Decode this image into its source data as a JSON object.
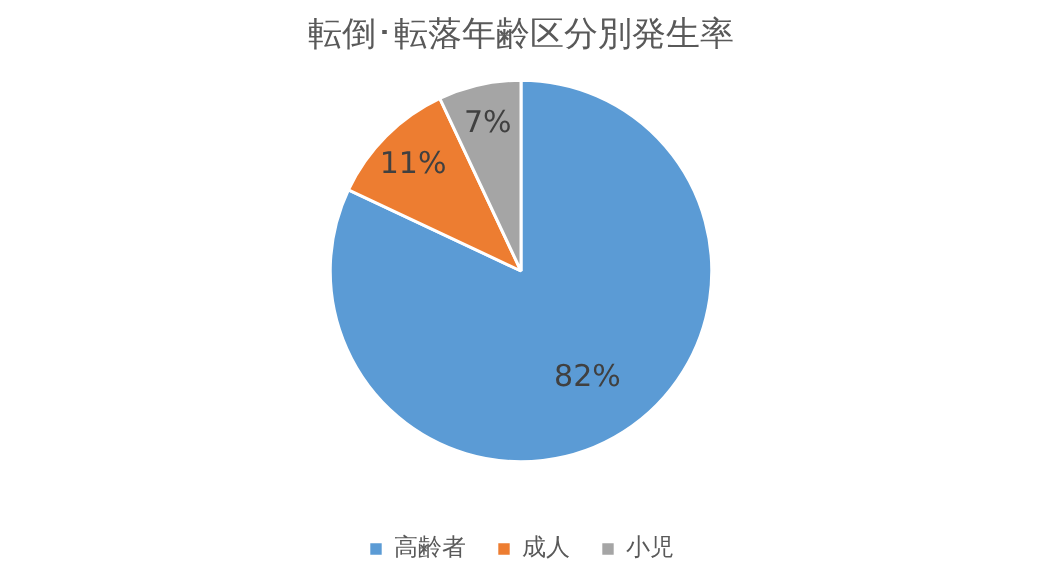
{
  "chart_data": {
    "type": "pie",
    "title": "転倒･転落年齢区分別発生率",
    "categories": [
      "高齢者",
      "成人",
      "小児"
    ],
    "values": [
      82,
      11,
      7
    ],
    "colors": [
      "#5b9bd5",
      "#ed7d31",
      "#a5a5a5"
    ],
    "value_labels": [
      "82%",
      "11%",
      "7%"
    ],
    "legend": "bottom"
  }
}
